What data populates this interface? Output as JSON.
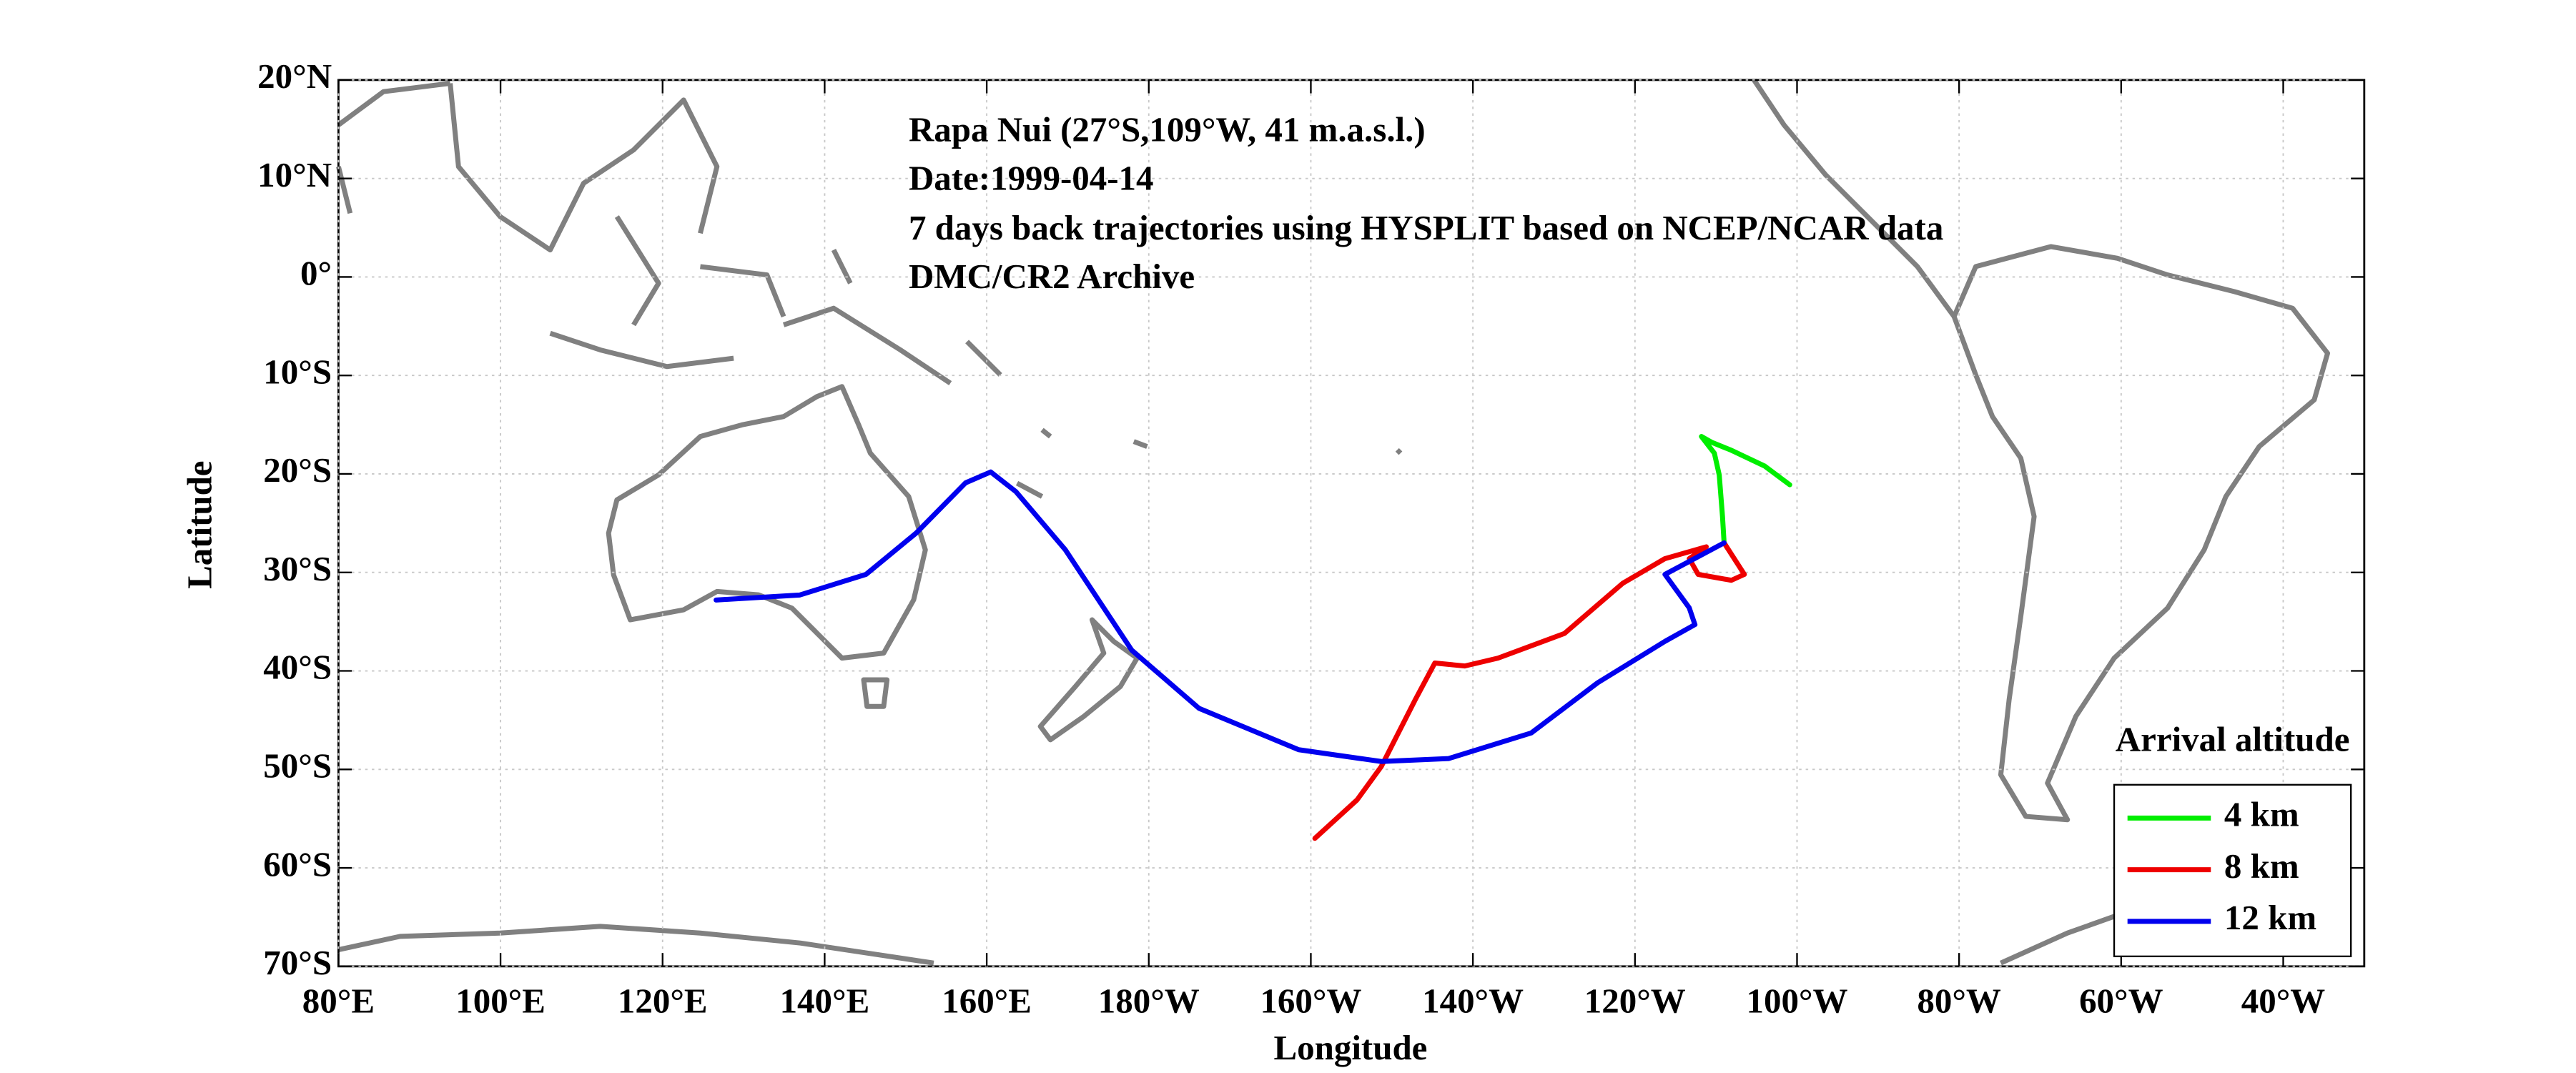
{
  "chart_data": {
    "type": "line",
    "annotations": [
      "Rapa Nui (27°S,109°W, 41 m.a.s.l.)",
      "Date:1999-04-14",
      "7 days back trajectories using HYSPLIT based on NCEP/NCAR data",
      "DMC/CR2 Archive"
    ],
    "xlabel": "Longitude",
    "ylabel": "Latitude",
    "xlim": [
      80,
      330
    ],
    "ylim": [
      -70,
      20
    ],
    "xticks": [
      {
        "value": 80,
        "label": "80°E"
      },
      {
        "value": 100,
        "label": "100°E"
      },
      {
        "value": 120,
        "label": "120°E"
      },
      {
        "value": 140,
        "label": "140°E"
      },
      {
        "value": 160,
        "label": "160°E"
      },
      {
        "value": 180,
        "label": "180°W"
      },
      {
        "value": 200,
        "label": "160°W"
      },
      {
        "value": 220,
        "label": "140°W"
      },
      {
        "value": 240,
        "label": "120°W"
      },
      {
        "value": 260,
        "label": "100°W"
      },
      {
        "value": 280,
        "label": "80°W"
      },
      {
        "value": 300,
        "label": "60°W"
      },
      {
        "value": 320,
        "label": "40°W"
      }
    ],
    "yticks": [
      {
        "value": -70,
        "label": "70°S"
      },
      {
        "value": -60,
        "label": "60°S"
      },
      {
        "value": -50,
        "label": "50°S"
      },
      {
        "value": -40,
        "label": "40°S"
      },
      {
        "value": -30,
        "label": "30°S"
      },
      {
        "value": -20,
        "label": "20°S"
      },
      {
        "value": -10,
        "label": "10°S"
      },
      {
        "value": 0,
        "label": "0°"
      },
      {
        "value": 10,
        "label": "10°N"
      },
      {
        "value": 20,
        "label": "20°N"
      }
    ],
    "grid": true,
    "legend_title": "Arrival altitude",
    "legend_position": "lower right",
    "series": [
      {
        "name": "4 km",
        "color": "#00ee00",
        "x": [
          251,
          250.8,
          250.4,
          249.8,
          248.2,
          249.5,
          251.9,
          256,
          259.1
        ],
        "values": [
          -27,
          -24.3,
          -20.1,
          -17.9,
          -16.2,
          -16.8,
          -17.6,
          -19.2,
          -21.1
        ]
      },
      {
        "name": "8 km",
        "color": "#ee0000",
        "x": [
          251,
          253.5,
          251.9,
          247.8,
          246.7,
          248.8,
          243.7,
          238.5,
          231.3,
          223.1,
          219.0,
          215.3,
          212.9,
          208.7,
          205.7,
          200.5
        ],
        "values": [
          -27,
          -30.2,
          -30.8,
          -30.2,
          -28.6,
          -27.4,
          -28.6,
          -31.1,
          -36.2,
          -38.7,
          -39.5,
          -39.2,
          -42.9,
          -49.7,
          -53.1,
          -57.0
        ]
      },
      {
        "name": "12 km",
        "color": "#0000ee",
        "x": [
          251,
          243.7,
          246.7,
          247.4,
          243.7,
          235.4,
          227.2,
          217.0,
          208.7,
          198.5,
          186.2,
          177.9,
          169.7,
          163.6,
          160.5,
          157.4,
          151.3,
          145.1,
          136.9,
          126.6
        ],
        "values": [
          -27,
          -30.2,
          -33.6,
          -35.3,
          -37.0,
          -41.2,
          -46.3,
          -48.9,
          -49.2,
          -48.0,
          -43.8,
          -37.9,
          -27.7,
          -21.8,
          -19.8,
          -20.9,
          -26.0,
          -30.2,
          -32.3,
          -32.8
        ]
      }
    ]
  }
}
